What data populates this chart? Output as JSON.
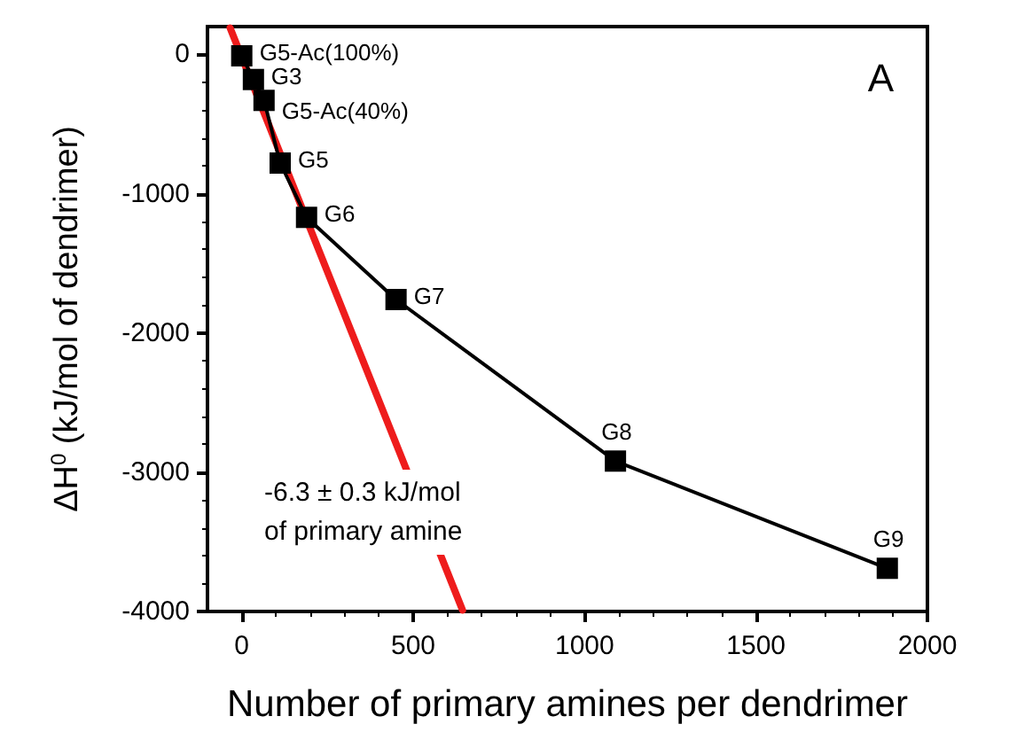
{
  "chart_data": {
    "type": "line",
    "title": "A",
    "xlabel": "Number of primary amines per dendrimer",
    "ylabel": "ΔH$^{0}$ (kJ/mol of dendrimer)",
    "xlim": [
      -100,
      2000
    ],
    "xticks": [
      0,
      500,
      1000,
      1500,
      2000
    ],
    "ylim": [
      -4000,
      200
    ],
    "yticks": [
      -4000,
      -3000,
      -2000,
      -1000,
      0
    ],
    "grid": false,
    "series": [
      {
        "color": "#000000",
        "marker": "square",
        "line_style": "solid",
        "x": [
          0,
          34,
          65,
          112,
          189,
          450,
          1090,
          1883
        ],
        "values": [
          -10,
          -180,
          -330,
          -780,
          -1170,
          -1760,
          -2920,
          -3690
        ]
      },
      {
        "color": "#ee1c1c",
        "marker": "none",
        "line_style": "solid",
        "x": [
          -34,
          644
        ],
        "values": [
          190,
          -3990
        ]
      }
    ],
    "annotations": [
      "-6.3 ± 0.3 kJ/mol\nof primary amine",
      {
        "text": "G5-Ac(100%)",
        "x": 0,
        "y": -10
      },
      {
        "text": "G3",
        "x": 34,
        "y": -180
      },
      {
        "text": "G5-Ac(40%)",
        "x": 65,
        "y": -330
      },
      {
        "text": "G5",
        "x": 112,
        "y": -780
      },
      {
        "text": "G6",
        "x": 189,
        "y": -1170
      },
      {
        "text": "G7",
        "x": 450,
        "y": -1760
      },
      {
        "text": "G8",
        "x": 1090,
        "y": -2920
      },
      {
        "text": "G9",
        "x": 1883,
        "y": -3690
      }
    ]
  }
}
